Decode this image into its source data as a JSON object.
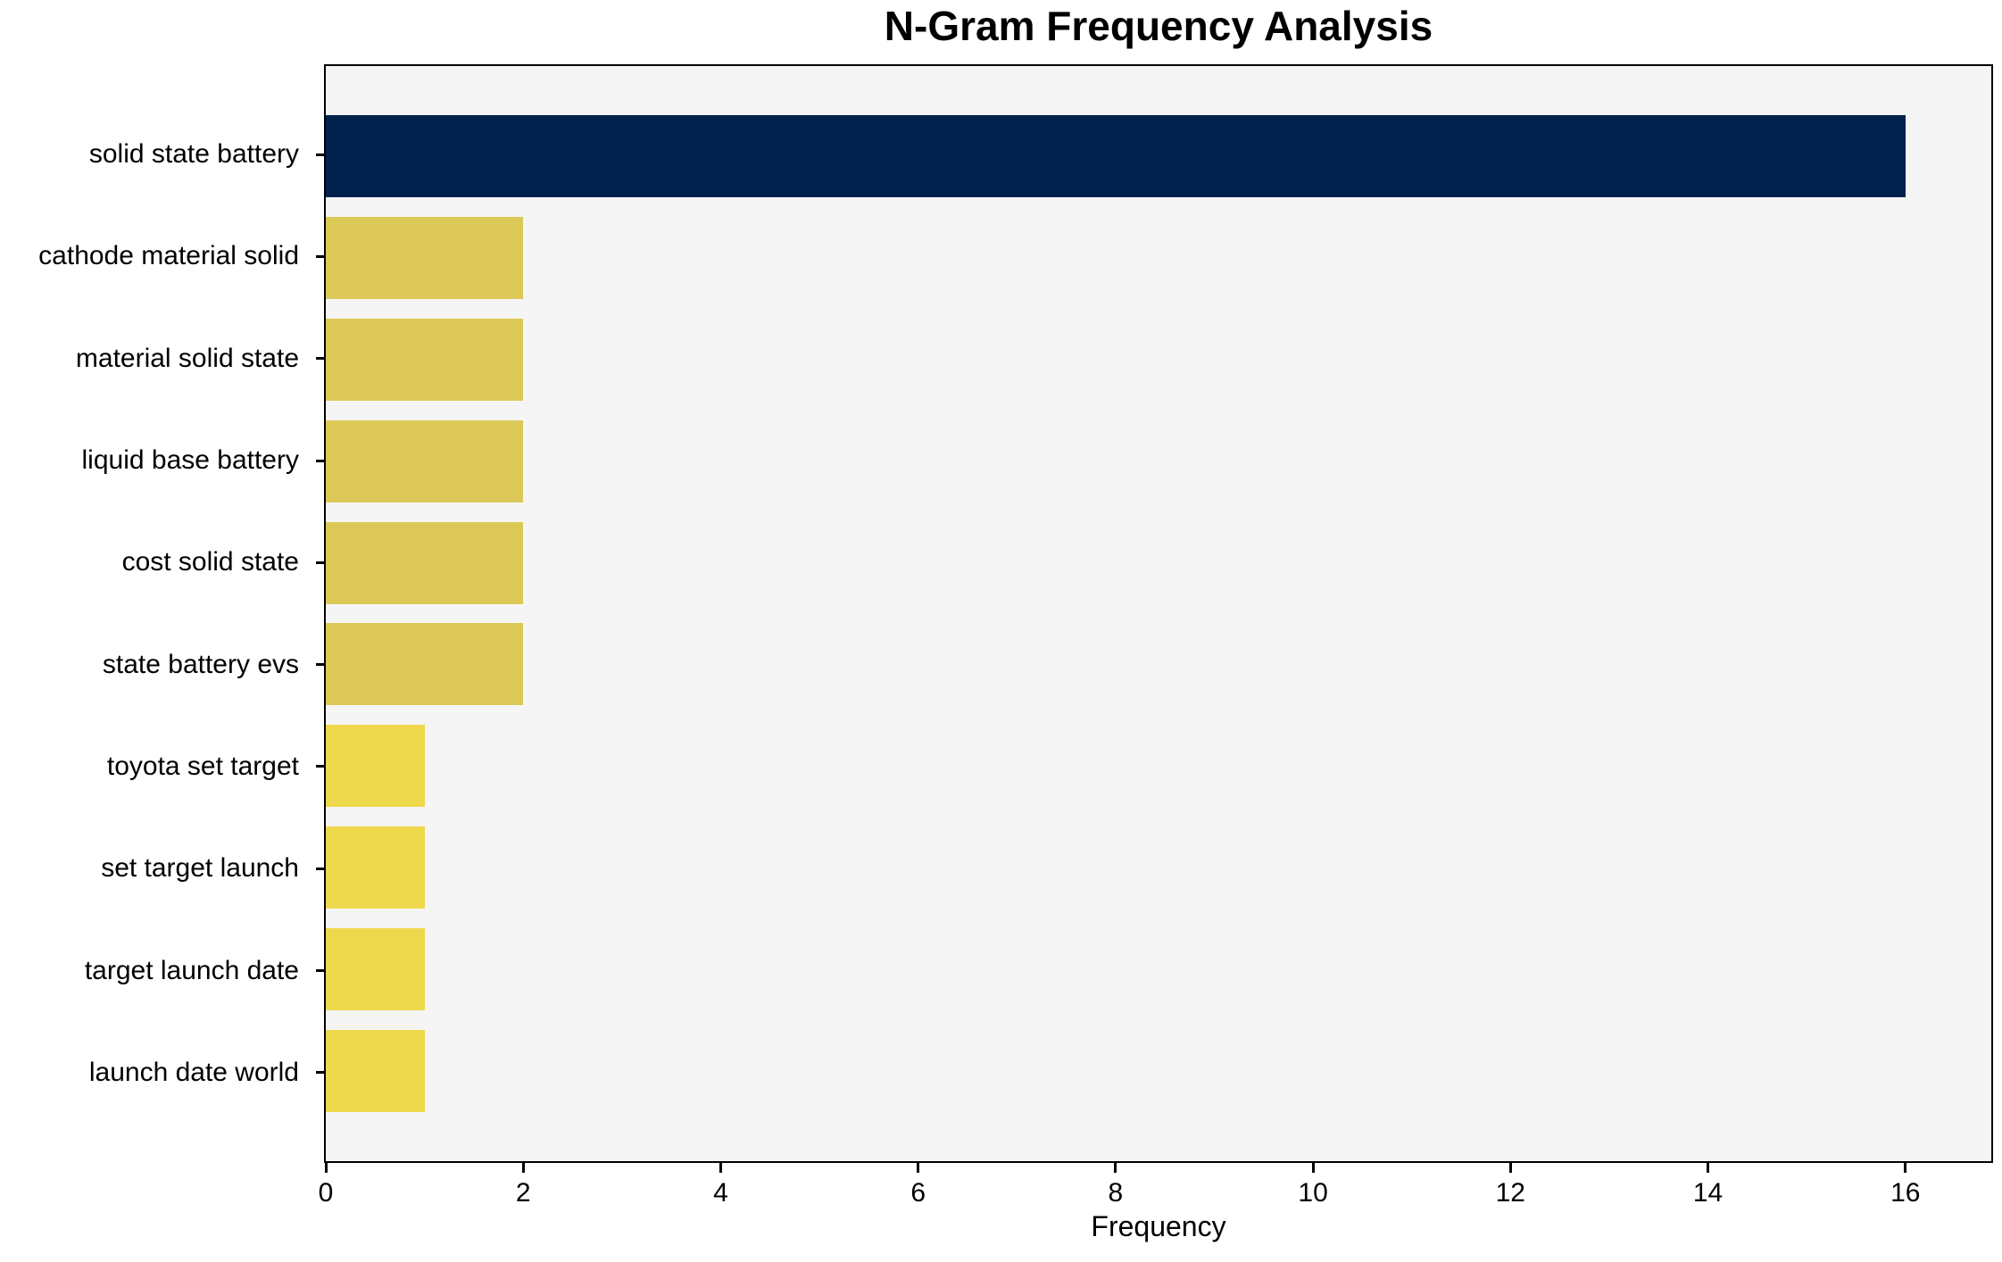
{
  "chart_data": {
    "type": "bar",
    "orientation": "horizontal",
    "title": "N-Gram Frequency Analysis",
    "xlabel": "Frequency",
    "ylabel": "",
    "categories": [
      "solid state battery",
      "cathode material solid",
      "material solid state",
      "liquid base battery",
      "cost solid state",
      "state battery evs",
      "toyota set target",
      "set target launch",
      "target launch date",
      "launch date world"
    ],
    "values": [
      16,
      2,
      2,
      2,
      2,
      2,
      1,
      1,
      1,
      1
    ],
    "bar_colors": [
      "#02224e",
      "#dcc857",
      "#dcc857",
      "#dcc857",
      "#dcc857",
      "#dcc857",
      "#eed84c",
      "#eed84c",
      "#eed84c",
      "#eed84c"
    ],
    "x_ticks": [
      0,
      2,
      4,
      6,
      8,
      10,
      12,
      14,
      16
    ],
    "xlim": [
      0,
      16.87
    ],
    "grid": false,
    "legend_position": "none",
    "plot_background": "#f5f5f5",
    "figure_background": "#ffffff",
    "spine_color": "#000000"
  }
}
